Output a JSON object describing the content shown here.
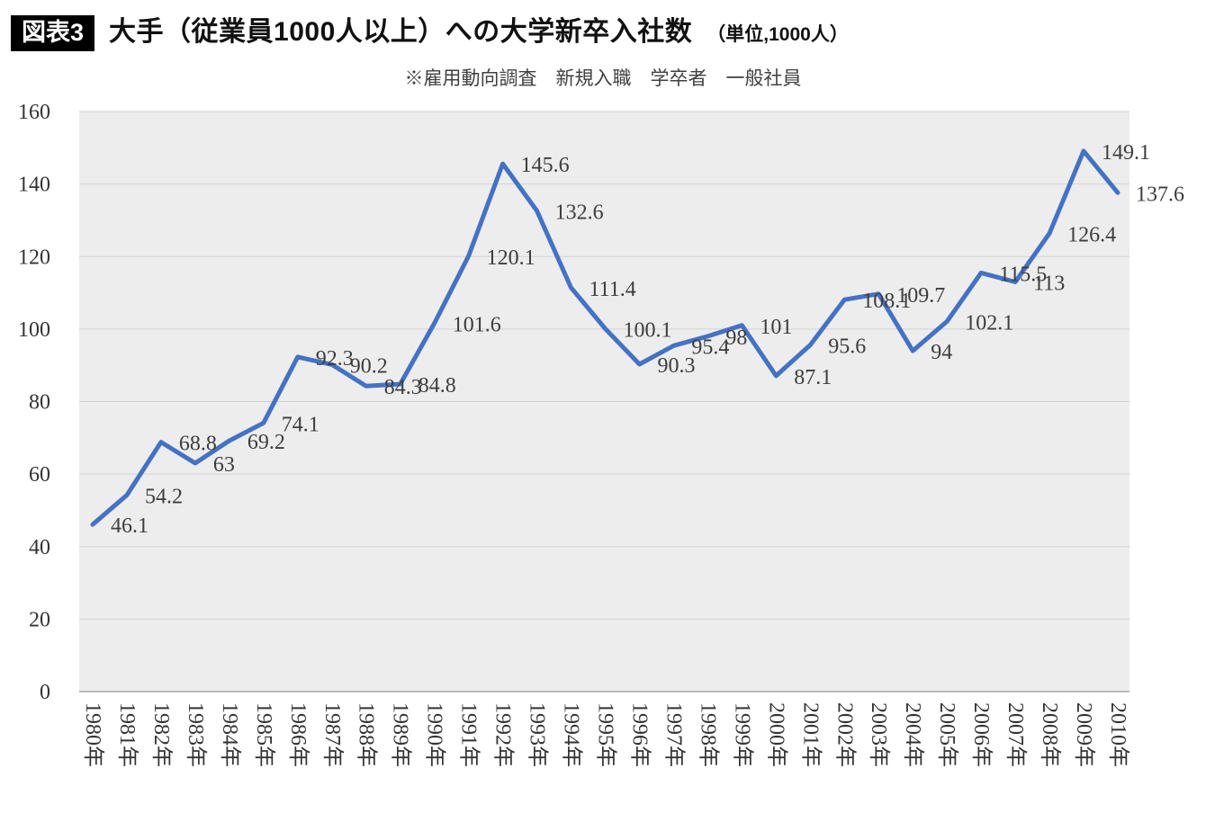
{
  "header": {
    "badge": "図表3",
    "title": "大手（従業員1000人以上）への大学新卒入社数",
    "unit": "（単位,1000人）",
    "subtitle": "※雇用動向調査　新規入職　学卒者　一般社員"
  },
  "chart_data": {
    "type": "line",
    "title": "大手（従業員1000人以上）への大学新卒入社数（単位,1000人）",
    "subtitle": "※雇用動向調査　新規入職　学卒者　一般社員",
    "x": [
      "1980年",
      "1981年",
      "1982年",
      "1983年",
      "1984年",
      "1985年",
      "1986年",
      "1987年",
      "1988年",
      "1989年",
      "1990年",
      "1991年",
      "1992年",
      "1993年",
      "1994年",
      "1995年",
      "1996年",
      "1997年",
      "1998年",
      "1999年",
      "2000年",
      "2001年",
      "2002年",
      "2003年",
      "2004年",
      "2005年",
      "2006年",
      "2007年",
      "2008年",
      "2009年",
      "2010年"
    ],
    "values": [
      46.1,
      54.2,
      68.8,
      63,
      69.2,
      74.1,
      92.3,
      90.2,
      84.3,
      84.8,
      101.6,
      120.1,
      145.6,
      132.6,
      111.4,
      100.1,
      90.3,
      95.4,
      98,
      101,
      87.1,
      95.6,
      108.1,
      109.7,
      94,
      102.1,
      115.5,
      113,
      126.4,
      149.1,
      137.6
    ],
    "ylim": [
      0,
      160
    ],
    "yticks": [
      0,
      20,
      40,
      60,
      80,
      100,
      120,
      140,
      160
    ],
    "grid": true,
    "data_labels": true,
    "legend": "none",
    "line_color": "#4472C4",
    "plot_bg": "#ededed",
    "grid_color": "#d2d2d2",
    "axis_color": "#a6a6a6",
    "label_color": "#3d3d3d"
  }
}
